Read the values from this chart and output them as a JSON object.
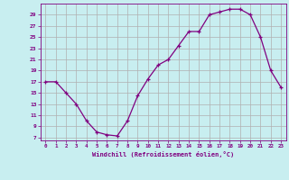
{
  "x": [
    0,
    1,
    2,
    3,
    4,
    5,
    6,
    7,
    8,
    9,
    10,
    11,
    12,
    13,
    14,
    15,
    16,
    17,
    18,
    19,
    20,
    21,
    22,
    23
  ],
  "y": [
    17,
    17,
    15,
    13,
    10,
    8,
    7.5,
    7.3,
    10,
    14.5,
    17.5,
    20,
    21,
    23.5,
    26,
    26,
    29,
    29.5,
    30,
    30,
    29,
    25,
    19,
    16
  ],
  "line_color": "#800080",
  "marker": "+",
  "bg_color": "#c8eef0",
  "grid_color": "#b0b0b0",
  "xlabel": "Windchill (Refroidissement éolien,°C)",
  "xlabel_color": "#800080",
  "xtick_labels": [
    "0",
    "1",
    "2",
    "3",
    "4",
    "5",
    "6",
    "7",
    "8",
    "9",
    "10",
    "11",
    "12",
    "13",
    "14",
    "15",
    "16",
    "17",
    "18",
    "19",
    "20",
    "21",
    "22",
    "23"
  ],
  "ytick_labels": [
    "7",
    "9",
    "11",
    "13",
    "15",
    "17",
    "19",
    "21",
    "23",
    "25",
    "27",
    "29"
  ],
  "yticks": [
    7,
    9,
    11,
    13,
    15,
    17,
    19,
    21,
    23,
    25,
    27,
    29
  ],
  "ylim": [
    6.5,
    31
  ],
  "xlim": [
    -0.5,
    23.5
  ],
  "tick_color": "#800080",
  "spine_color": "#800080"
}
